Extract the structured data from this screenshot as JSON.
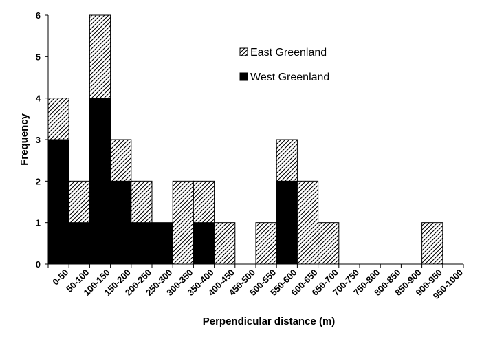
{
  "chart_data": {
    "type": "bar",
    "stacked": true,
    "categories": [
      "0-50",
      "50-100",
      "100-150",
      "150-200",
      "200-250",
      "250-300",
      "300-350",
      "350-400",
      "400-450",
      "450-500",
      "500-550",
      "550-600",
      "600-650",
      "650-700",
      "700-750",
      "750-800",
      "800-850",
      "850-900",
      "900-950",
      "950-1000"
    ],
    "series": [
      {
        "name": "West Greenland",
        "color": "#000000",
        "pattern": "solid",
        "values": [
          3,
          1,
          4,
          2,
          1,
          1,
          0,
          1,
          0,
          0,
          0,
          2,
          0,
          0,
          0,
          0,
          0,
          0,
          0,
          0
        ]
      },
      {
        "name": "East Greenland",
        "color": "#ffffff",
        "pattern": "diagonal-hatch",
        "values": [
          1,
          1,
          2,
          1,
          1,
          0,
          2,
          1,
          1,
          0,
          1,
          1,
          2,
          1,
          0,
          0,
          0,
          0,
          1,
          0
        ]
      }
    ],
    "xlabel": "Perpendicular distance (m)",
    "ylabel": "Frequency",
    "ylim": [
      0,
      6
    ],
    "yticks": [
      0,
      1,
      2,
      3,
      4,
      5,
      6
    ],
    "grid": false,
    "legend_position": "top-center"
  }
}
